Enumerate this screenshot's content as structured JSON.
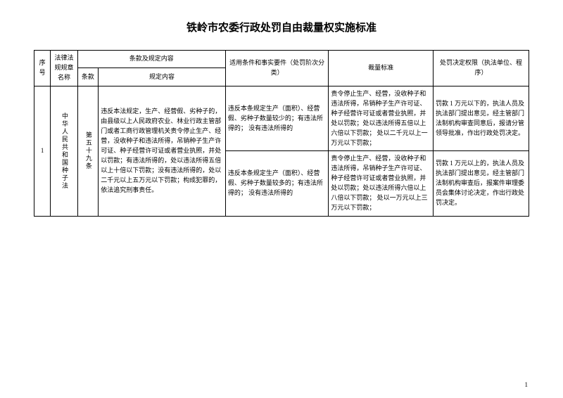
{
  "title": "铁岭市农委行政处罚自由裁量权实施标准",
  "title_fontsize": 15,
  "body_fontsize": 9,
  "colors": {
    "text": "#000000",
    "border": "#000000",
    "background": "#ffffff"
  },
  "columns": {
    "seq": "序号",
    "law": "法律法规规章名称",
    "clause_group": "条款及规定内容",
    "clause": "条款",
    "content": "规定内容",
    "conditions": "适用条件和事实要件（处罚阶次分类）",
    "standard": "裁量标准",
    "authority": "处罚决定权限（执法单位、程序）"
  },
  "col_widths": {
    "seq": 22,
    "law": 36,
    "clause": 28,
    "content": 170,
    "conditions": 138,
    "standard": 140,
    "authority": 128
  },
  "row": {
    "seq": "1",
    "law_name": "中华人民共和国种子法",
    "clause": "第五十九条",
    "content": "违反本法规定，生产、经营假、劣种子的，由县级以上人民政府农业、林业行政主管部门或者工商行政管理机关责令停止生产、经营，没收种子和违法所得，吊销种子生产许可证、种子经营许可证或者营业执照，并处以罚款；有违法所得的，处以违法所得五倍以上十倍以下罚款；没有违法所得的，处以二千元以上五万元以下罚款；构成犯罪的，依法追究刑事责任。",
    "sub": [
      {
        "conditions": "违反本条规定生产（面积）、经营假、劣种子数量较少的；有违法所得的；\n没有违法所得的",
        "standard": "责令停止生产、经营，没收种子和违法所得，吊销种子生产许可证、种子经营许可证或者营业执照，并处以罚款；处以违法所得五倍以上六倍以下罚款；\n处以二千元以上一万元以下罚款；",
        "authority": "罚款 1 万元以下的，执法人员及执法部门提出意见，经主管部门法制机构审查同意后，报请分管领导批准，作出行政处罚决定。"
      },
      {
        "conditions": "违反本条规定生产（面积）、经营假、劣种子数量较多的；有违法所得的；\n没有违法所得的",
        "standard": "责令停止生产、经营，没收种子和违法所得，吊销种子生产许可证、种子经营许可证或者营业执照，并处以罚款；处以违法所得六倍以上八倍以下罚款；\n处以一万元以上三万元以下罚款；",
        "authority": "罚款 1 万元以上的，执法人员及执法部门提出意见，经主管部门法制机构审查后，报案件审理委员会集体讨论决定，作出行政处罚决定。"
      }
    ]
  },
  "page_number": "1"
}
